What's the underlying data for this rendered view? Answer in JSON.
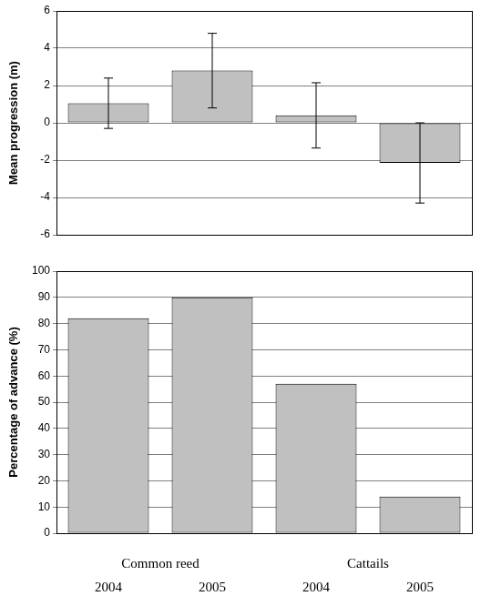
{
  "chart_data": [
    {
      "type": "bar",
      "y_label": "Mean progression (m)",
      "categories": [
        "2004",
        "2005",
        "2004",
        "2005"
      ],
      "values": [
        1.05,
        2.8,
        0.4,
        -2.15
      ],
      "errors": [
        1.35,
        2.0,
        1.75,
        2.15
      ],
      "color": "#c0c0c0",
      "ylim": [
        -6,
        6
      ],
      "yticks": [
        -6,
        -4,
        -2,
        0,
        2,
        4,
        6
      ],
      "grid": true,
      "tick_labels": "y"
    },
    {
      "type": "bar",
      "y_label": "Percentage of advance (%)",
      "categories": [
        "2004",
        "2005",
        "2004",
        "2005"
      ],
      "group_labels": [
        "Common reed",
        "Cattails"
      ],
      "values": [
        82,
        90,
        57,
        14
      ],
      "color": "#c0c0c0",
      "ylim": [
        0,
        100
      ],
      "yticks": [
        0,
        10,
        20,
        30,
        40,
        50,
        60,
        70,
        80,
        90,
        100
      ],
      "grid": true
    }
  ]
}
